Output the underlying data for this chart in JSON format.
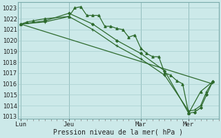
{
  "background_color": "#cce9e9",
  "grid_color": "#a8cece",
  "line_color": "#2d6a2d",
  "title": "Pression niveau de la mer( hPa )",
  "ylim": [
    1012.8,
    1023.5
  ],
  "yticks": [
    1013,
    1014,
    1015,
    1016,
    1017,
    1018,
    1019,
    1020,
    1021,
    1022,
    1023
  ],
  "xtick_labels": [
    "Lun",
    "Jeu",
    "Mar",
    "Mer"
  ],
  "xtick_positions": [
    0,
    8,
    20,
    28
  ],
  "vline_positions": [
    0,
    8,
    20,
    28
  ],
  "xlim": [
    -0.5,
    33
  ],
  "series": [
    {
      "x": [
        0,
        1,
        2,
        4,
        8,
        9,
        10,
        11,
        12,
        13,
        14,
        15,
        16,
        17,
        18,
        19,
        20,
        21,
        22,
        23,
        24,
        25,
        26,
        27,
        28,
        30,
        32
      ],
      "y": [
        1021.5,
        1021.7,
        1021.8,
        1022.0,
        1022.2,
        1023.0,
        1023.1,
        1022.3,
        1022.3,
        1022.3,
        1021.3,
        1021.3,
        1021.1,
        1021.0,
        1020.3,
        1020.5,
        1019.3,
        1018.8,
        1018.5,
        1018.5,
        1017.0,
        1016.8,
        1016.3,
        1016.0,
        1013.3,
        1015.3,
        1016.2
      ],
      "marker": "^",
      "markersize": 2.5,
      "linewidth": 0.9
    },
    {
      "x": [
        0,
        32
      ],
      "y": [
        1021.5,
        1016.0
      ],
      "marker": "None",
      "markersize": 0,
      "linewidth": 0.9
    },
    {
      "x": [
        0,
        4,
        8,
        12,
        16,
        20,
        24,
        28,
        29,
        30,
        31,
        32
      ],
      "y": [
        1021.5,
        1021.8,
        1022.5,
        1021.5,
        1020.0,
        1018.8,
        1017.2,
        1013.3,
        1013.4,
        1013.8,
        1015.0,
        1016.2
      ],
      "marker": "D",
      "markersize": 2.0,
      "linewidth": 0.9
    },
    {
      "x": [
        0,
        4,
        8,
        12,
        16,
        20,
        24,
        28,
        29,
        30,
        31,
        32
      ],
      "y": [
        1021.5,
        1021.7,
        1022.2,
        1021.0,
        1019.5,
        1018.3,
        1016.8,
        1013.5,
        1013.6,
        1014.0,
        1015.3,
        1016.2
      ],
      "marker": "+",
      "markersize": 3.0,
      "linewidth": 0.9
    }
  ]
}
